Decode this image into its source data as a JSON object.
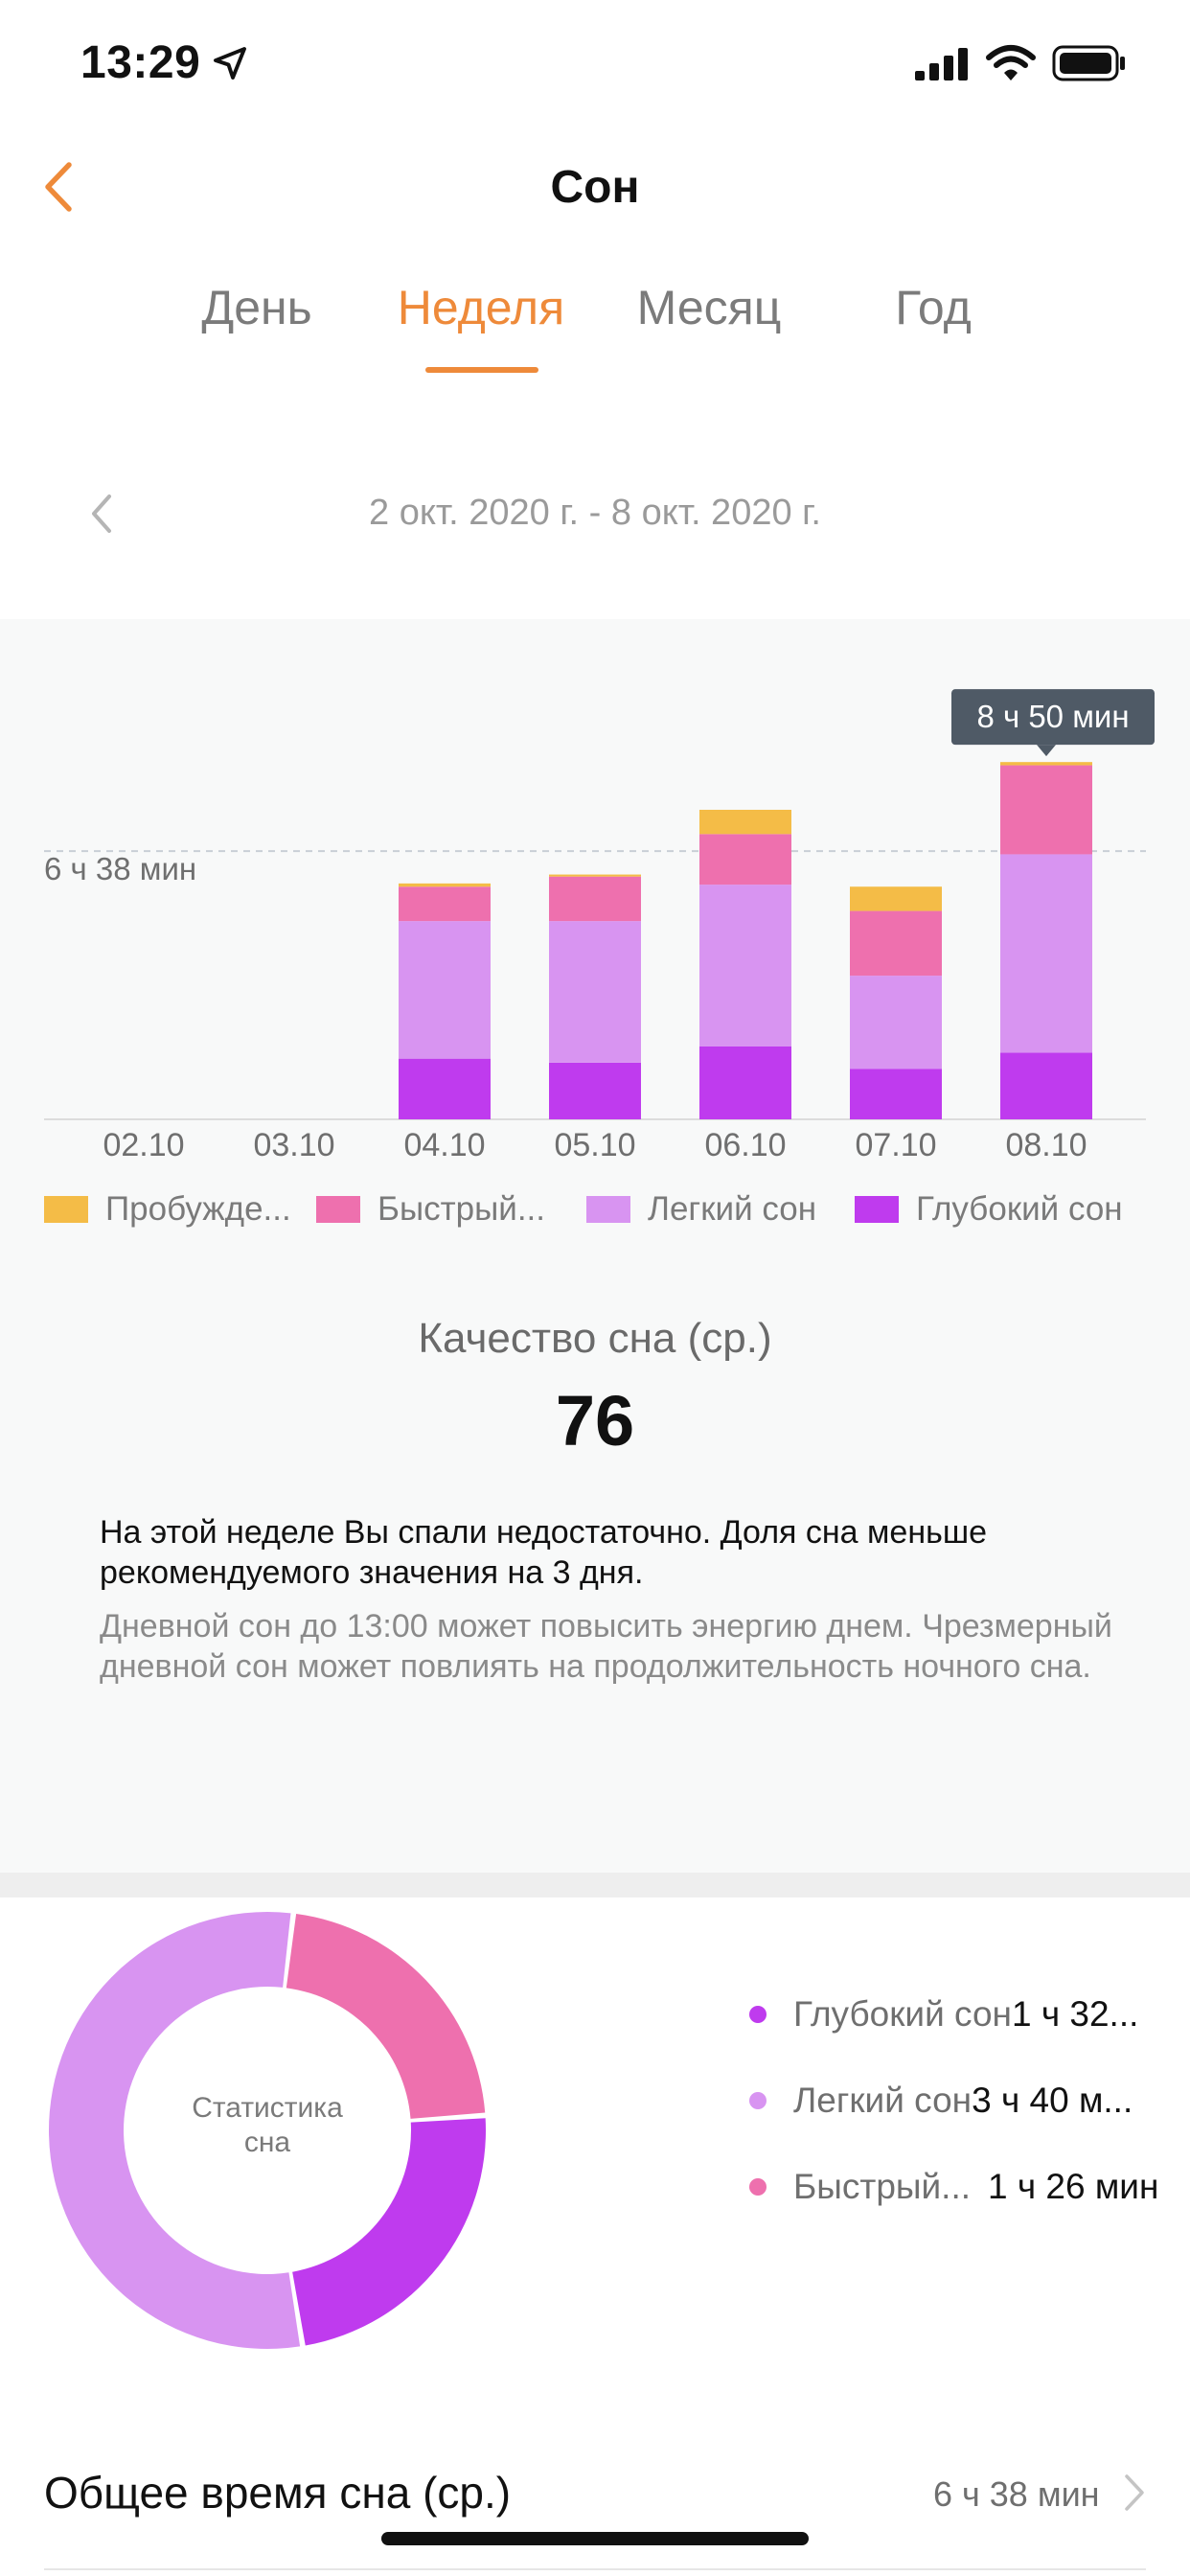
{
  "status_bar": {
    "time": "13:29"
  },
  "header": {
    "title": "Сон"
  },
  "tabs": [
    {
      "label": "День",
      "active": false
    },
    {
      "label": "Неделя",
      "active": true
    },
    {
      "label": "Месяц",
      "active": false
    },
    {
      "label": "Год",
      "active": false
    }
  ],
  "date_range": "2 окт. 2020 г. - 8 окт. 2020 г.",
  "colors": {
    "accent": "#EE8A3A",
    "awake": "#F4BC47",
    "rem": "#EE70AE",
    "light": "#D894F1",
    "deep": "#BF3BEE"
  },
  "chart_data": {
    "type": "bar",
    "stacked": true,
    "unit": "hours",
    "categories": [
      "02.10",
      "03.10",
      "04.10",
      "05.10",
      "06.10",
      "07.10",
      "08.10"
    ],
    "series": [
      {
        "name": "Глубокий сон",
        "color_key": "deep",
        "values": [
          0,
          0,
          1.5,
          1.4,
          1.8,
          1.25,
          1.65
        ]
      },
      {
        "name": "Легкий сон",
        "color_key": "light",
        "values": [
          0,
          0,
          3.4,
          3.5,
          4.0,
          2.3,
          4.9
        ]
      },
      {
        "name": "Быстрый...",
        "color_key": "rem",
        "values": [
          0,
          0,
          0.85,
          1.1,
          1.25,
          1.6,
          2.2
        ]
      },
      {
        "name": "Пробужде...",
        "color_key": "awake",
        "values": [
          0,
          0,
          0.08,
          0.05,
          0.6,
          0.6,
          0.08
        ]
      }
    ],
    "reference_line": {
      "value": 6.63,
      "label": "6 ч 38 мин"
    },
    "highlight": {
      "category": "08.10",
      "label": "8 ч 50 мин"
    },
    "ylim": [
      0,
      9
    ]
  },
  "legend": [
    {
      "label": "Пробужде...",
      "color_key": "awake"
    },
    {
      "label": "Быстрый...",
      "color_key": "rem"
    },
    {
      "label": "Легкий сон",
      "color_key": "light"
    },
    {
      "label": "Глубокий сон",
      "color_key": "deep"
    }
  ],
  "quality": {
    "label": "Качество сна (ср.)",
    "score": "76",
    "advice_main": "На этой неделе Вы спали недостаточно. Доля сна меньше рекомендуемого значения на 3 дня.",
    "advice_secondary": "Дневной сон до 13:00 может повысить энергию днем. Чрезмерный дневной сон может повлиять на продолжительность ночного сна."
  },
  "stats": {
    "center_label": "Статистика сна",
    "donut_data": [
      {
        "name": "Быстрый сон",
        "color_key": "rem",
        "fraction": 0.22
      },
      {
        "name": "Глубокий сон",
        "color_key": "deep",
        "fraction": 0.235
      },
      {
        "name": "Легкий сон",
        "color_key": "light",
        "fraction": 0.545
      }
    ],
    "items": [
      {
        "name": "Глубокий сон",
        "value": "1 ч 32...",
        "color_key": "deep"
      },
      {
        "name": "Легкий сон",
        "value": "3 ч 40 м...",
        "color_key": "light"
      },
      {
        "name": "Быстрый...",
        "value": "1 ч 26 мин",
        "color_key": "rem"
      }
    ]
  },
  "total": {
    "label": "Общее время сна (ср.)",
    "value": "6 ч 38 мин"
  }
}
